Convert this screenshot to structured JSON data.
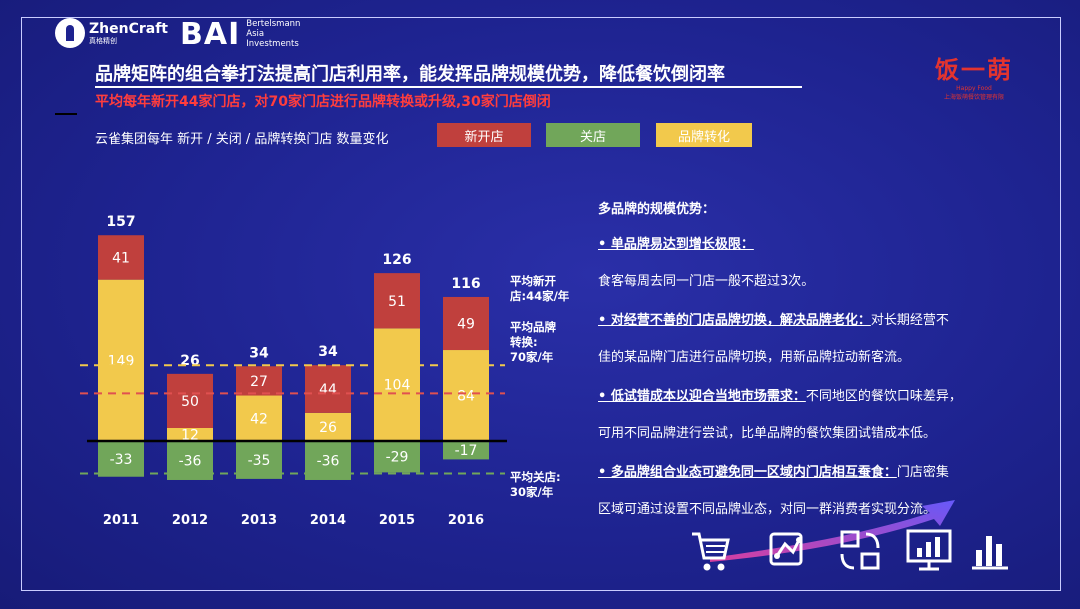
{
  "logos": {
    "zhencraft": {
      "name": "ZhenCraft",
      "sub": "真格精创"
    },
    "bai": {
      "big": "BAI",
      "line1": "Bertelsmann",
      "line2": "Asia",
      "line3": "Investments"
    },
    "fanmeng": {
      "main": "饭一萌",
      "sub1": "Happy Food",
      "sub2": "上海饭萌餐饮管理有限"
    }
  },
  "title": "品牌矩阵的组合拳打法提高门店利用率，能发挥品牌规模优势，降低餐饮倒闭率",
  "subtitle": "平均每年新开44家门店，对70家门店进行品牌转换或升级,30家门店倒闭",
  "legend": {
    "title": "云雀集团每年 新开 / 关闭 / 品牌转换门店 数量变化",
    "items": [
      {
        "label": "新开店",
        "color": "#c0403d"
      },
      {
        "label": "关店",
        "color": "#71a65a"
      },
      {
        "label": "品牌转化",
        "color": "#f2c94c"
      }
    ]
  },
  "chart_data": {
    "type": "bar",
    "stacked": true,
    "categories": [
      "2011",
      "2012",
      "2013",
      "2014",
      "2015",
      "2016"
    ],
    "series": [
      {
        "name": "品牌转化",
        "color": "#f2c94c",
        "values": [
          149,
          12,
          42,
          26,
          104,
          84
        ]
      },
      {
        "name": "新开店",
        "color": "#c0403d",
        "values": [
          41,
          50,
          27,
          44,
          51,
          49
        ]
      },
      {
        "name": "关店",
        "color": "#71a65a",
        "values": [
          -33,
          -36,
          -35,
          -36,
          -29,
          -17
        ]
      }
    ],
    "totals": [
      157,
      26,
      34,
      34,
      126,
      116
    ],
    "reference_lines": [
      {
        "label_lines": [
          "平均新开",
          "店:44家/年"
        ],
        "value": 44,
        "color": "#e05050"
      },
      {
        "label_lines": [
          "平均品牌",
          "转换:",
          "70家/年"
        ],
        "value": 70,
        "color": "#f2c94c"
      },
      {
        "label_lines": [
          "平均关店:",
          "30家/年"
        ],
        "value": -30,
        "color": "#71a65a"
      }
    ]
  },
  "advantages": {
    "heading": "多品牌的规模优势：",
    "items": [
      {
        "bold": "• 单品牌易达到增长极限：",
        "rest": "",
        "cont": "    食客每周去同一门店一般不超过3次。"
      },
      {
        "bold": "•  对经营不善的门店品牌切换，解决品牌老化：",
        "rest": "对长期经营不",
        "cont": "佳的某品牌门店进行品牌切换，用新品牌拉动新客流。"
      },
      {
        "bold": "•  低试错成本以迎合当地市场需求：",
        "rest": "不同地区的餐饮口味差异，",
        "cont": "可用不同品牌进行尝试，比单品牌的餐饮集团试错成本低。"
      },
      {
        "bold": "•  多品牌组合业态可避免同一区域内门店相互蚕食：",
        "rest": "门店密集",
        "cont": "区域可通过设置不同品牌业态，对同一群消费者实现分流。"
      }
    ]
  },
  "icons": [
    "cart-icon",
    "network-icon",
    "transfer-icon",
    "monitor-chart-icon",
    "bar-chart-icon"
  ]
}
